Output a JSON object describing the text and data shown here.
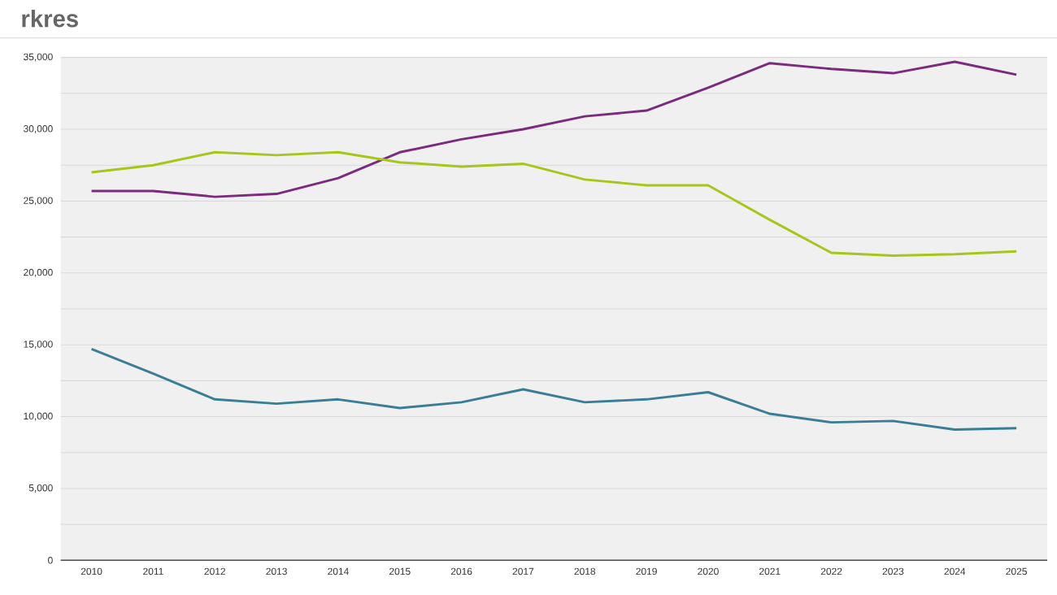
{
  "chart_data": {
    "type": "line",
    "title": "rkres",
    "categories": [
      "2010",
      "2011",
      "2012",
      "2013",
      "2014",
      "2015",
      "2016",
      "2017",
      "2018",
      "2019",
      "2020",
      "2021",
      "2022",
      "2023",
      "2024",
      "2025"
    ],
    "series": [
      {
        "color": "#7b2a7e",
        "values": [
          25700,
          25700,
          25300,
          25500,
          26600,
          28400,
          29300,
          30000,
          30900,
          31300,
          32900,
          34600,
          34200,
          33900,
          34700,
          33800
        ]
      },
      {
        "color": "#a5c61a",
        "values": [
          27000,
          27500,
          28400,
          28200,
          28400,
          27700,
          27400,
          27600,
          26500,
          26100,
          26100,
          23700,
          21400,
          21200,
          21300,
          21500
        ]
      },
      {
        "color": "#3a7d96",
        "values": [
          14700,
          13000,
          11200,
          10900,
          11200,
          10600,
          11000,
          11900,
          11000,
          11200,
          11700,
          10200,
          9600,
          9700,
          9100,
          9200
        ]
      }
    ],
    "ylim": [
      0,
      35000
    ],
    "yticks": [
      0,
      {
        "value": 2500,
        "label": null
      },
      {
        "value": 5000,
        "label": "5,000"
      },
      {
        "value": 7500,
        "label": null
      },
      {
        "value": 10000,
        "label": "10,000"
      },
      {
        "value": 12500,
        "label": null
      },
      {
        "value": 15000,
        "label": "15,000"
      },
      {
        "value": 17500,
        "label": null
      },
      {
        "value": 20000,
        "label": "20,000"
      },
      {
        "value": 22500,
        "label": null
      },
      {
        "value": 25000,
        "label": "25,000"
      },
      {
        "value": 27500,
        "label": null
      },
      {
        "value": 30000,
        "label": "30,000"
      },
      {
        "value": 32500,
        "label": null
      },
      {
        "value": 35000,
        "label": "35,000"
      }
    ],
    "grid": "y",
    "marker": "none",
    "line_style": "solid"
  }
}
